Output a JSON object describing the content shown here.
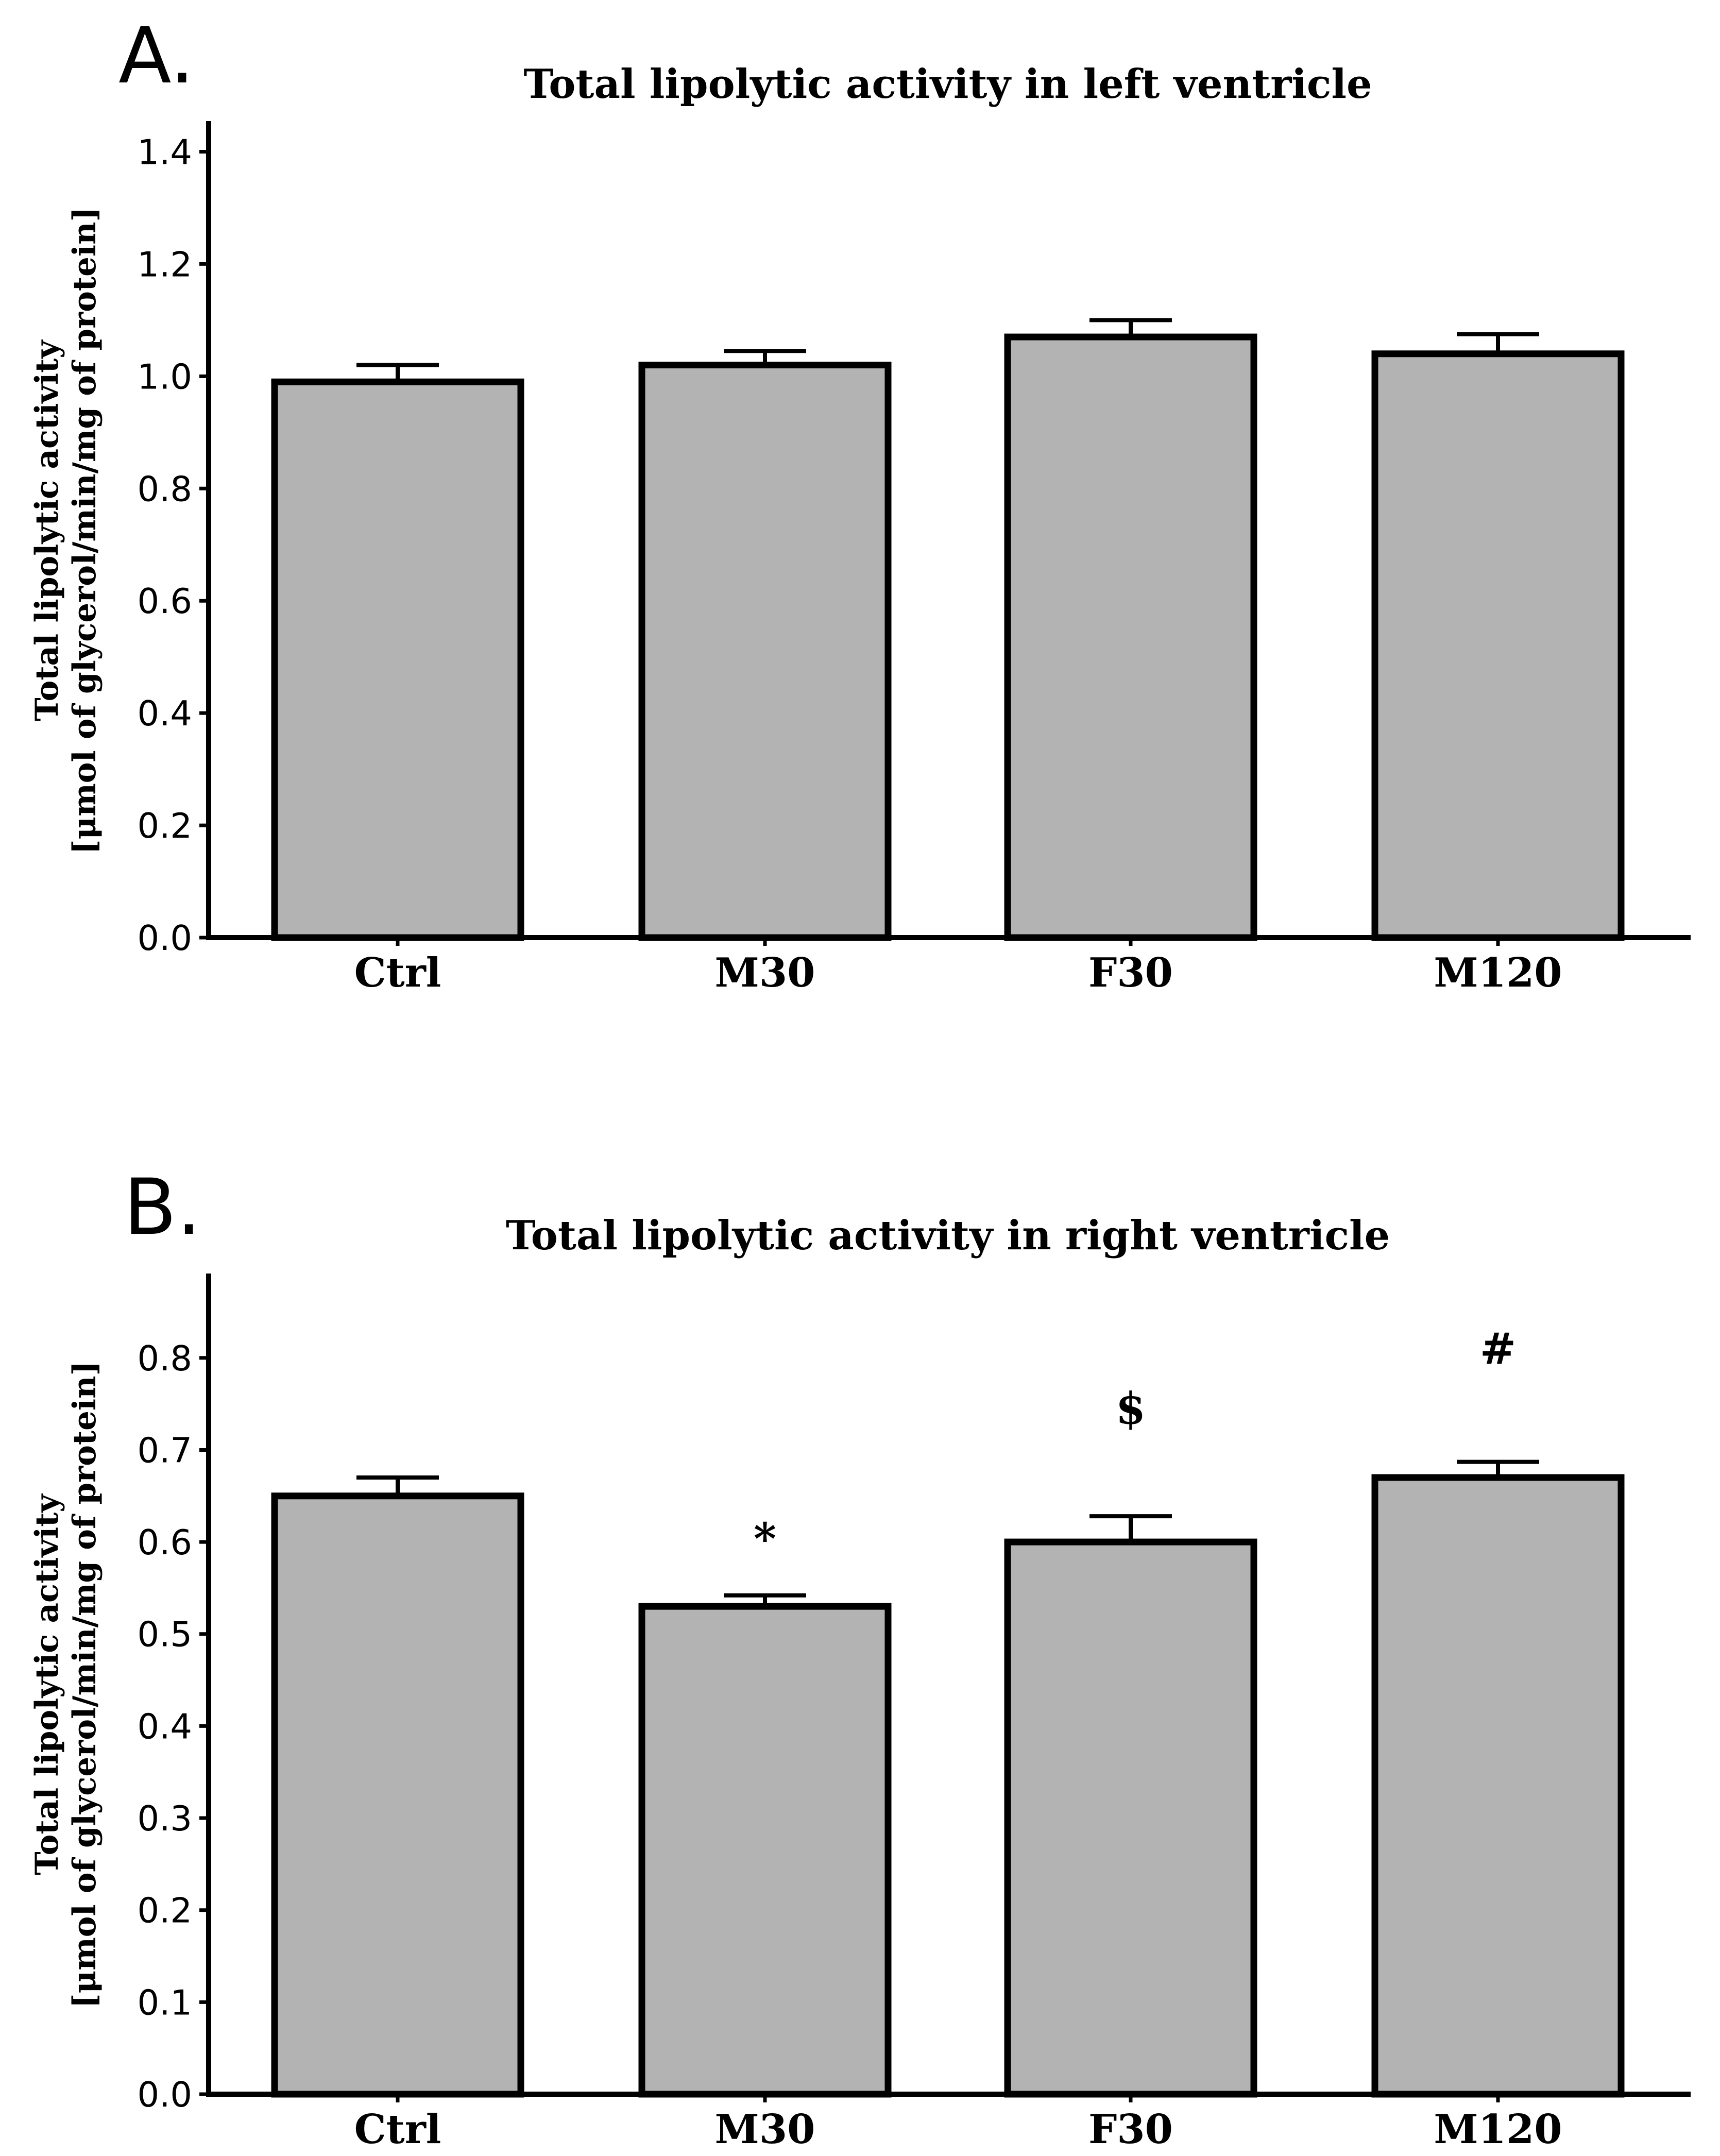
{
  "chart_data": [
    {
      "panel": "A.",
      "type": "bar",
      "title": "Total lipolytic activity in left ventricle",
      "ylabel_line1": "Total lipolytic activity",
      "ylabel_line2": "[μmol of glycerol/min/mg of protein]",
      "categories": [
        "Ctrl",
        "M30",
        "F30",
        "M120"
      ],
      "values": [
        0.99,
        1.02,
        1.07,
        1.04
      ],
      "errors": [
        0.03,
        0.025,
        0.03,
        0.035
      ],
      "annotations": [
        "",
        "",
        "",
        ""
      ],
      "ylim": [
        0,
        1.45
      ],
      "yticks": [
        0.0,
        0.2,
        0.4,
        0.6,
        0.8,
        1.0,
        1.2,
        1.4
      ],
      "ytick_labels": [
        "0.0",
        "0.2",
        "0.4",
        "0.6",
        "0.8",
        "1.0",
        "1.2",
        "1.4"
      ]
    },
    {
      "panel": "B.",
      "type": "bar",
      "title": "Total lipolytic activity in right ventricle",
      "ylabel_line1": "Total lipolytic activity",
      "ylabel_line2": "[μmol of glycerol/min/mg of protein]",
      "categories": [
        "Ctrl",
        "M30",
        "F30",
        "M120"
      ],
      "values": [
        0.65,
        0.53,
        0.6,
        0.67
      ],
      "errors": [
        0.02,
        0.012,
        0.028,
        0.017
      ],
      "annotations": [
        "",
        "*",
        "$",
        "#"
      ],
      "ylim": [
        0,
        0.89
      ],
      "yticks": [
        0.0,
        0.1,
        0.2,
        0.3,
        0.4,
        0.5,
        0.6,
        0.7,
        0.8
      ],
      "ytick_labels": [
        "0.0",
        "0.1",
        "0.2",
        "0.3",
        "0.4",
        "0.5",
        "0.6",
        "0.7",
        "0.8"
      ]
    }
  ]
}
